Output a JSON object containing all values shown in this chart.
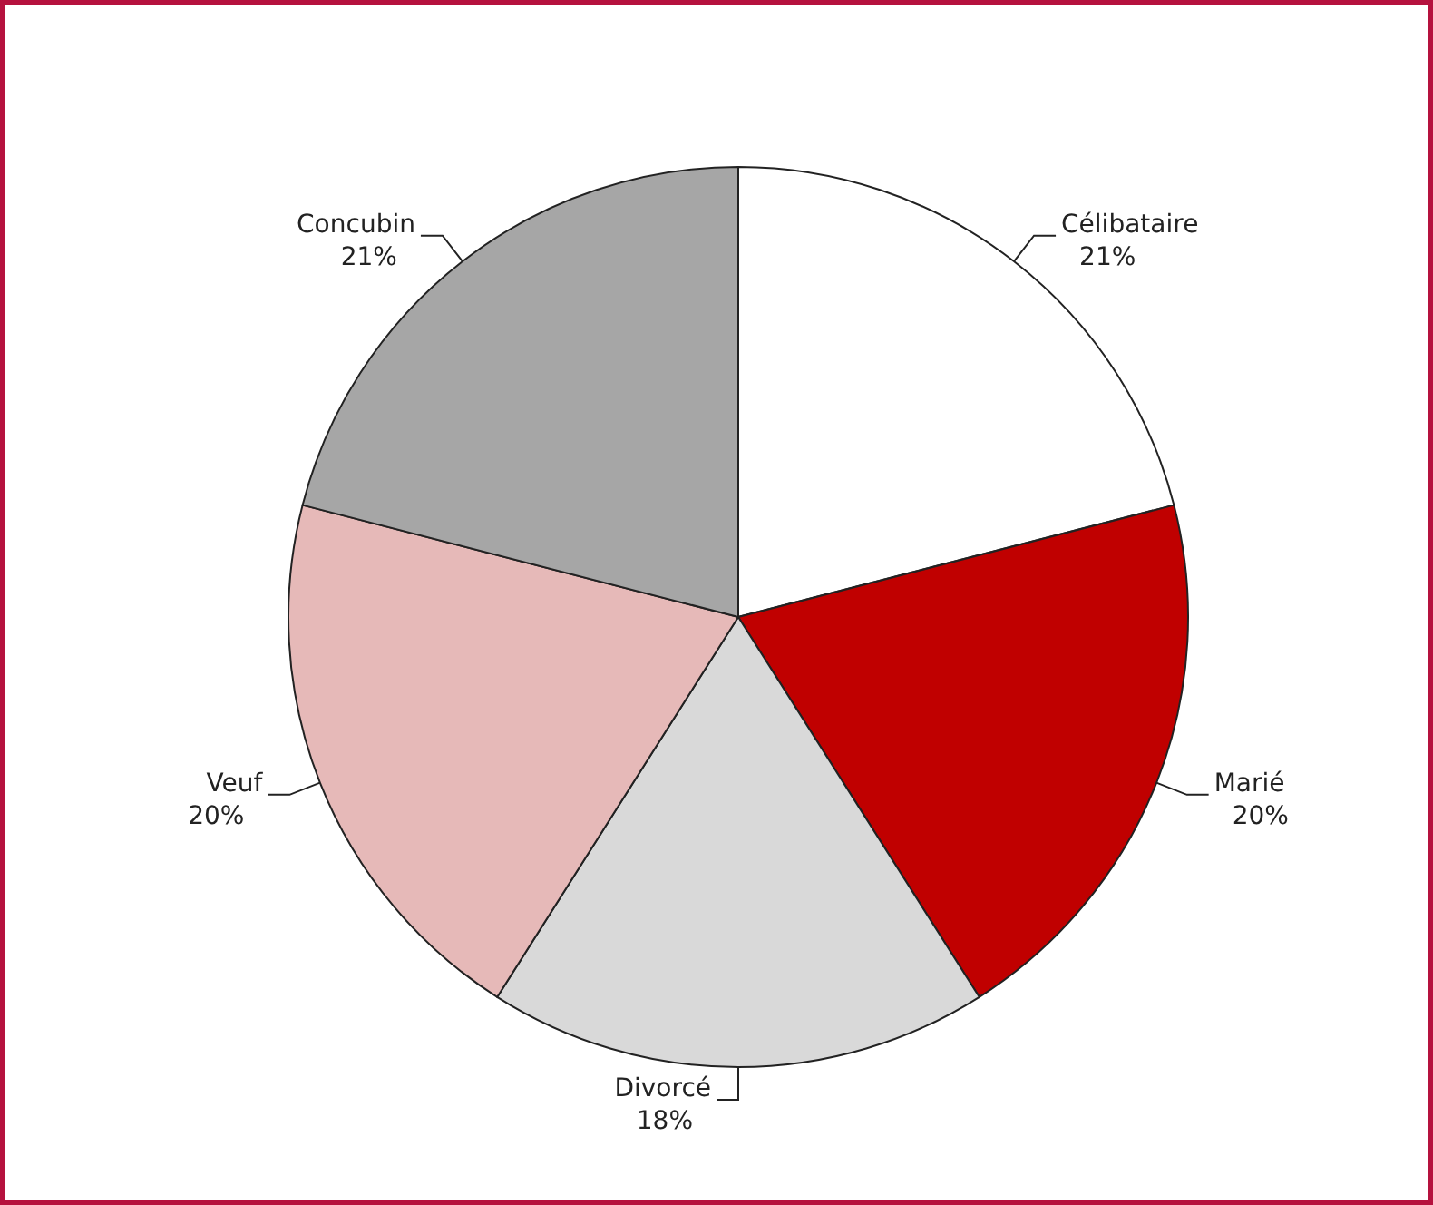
{
  "chart_data": {
    "type": "pie",
    "categories": [
      "Célibataire",
      "Marié",
      "Divorcé",
      "Veuf",
      "Concubin"
    ],
    "values": [
      21,
      20,
      18,
      20,
      21
    ],
    "value_labels": [
      "21%",
      "20%",
      "18%",
      "20%",
      "21%"
    ],
    "colors": [
      "#ffffff",
      "#c00000",
      "#d9d9d9",
      "#e6b9b8",
      "#a6a6a6"
    ]
  }
}
